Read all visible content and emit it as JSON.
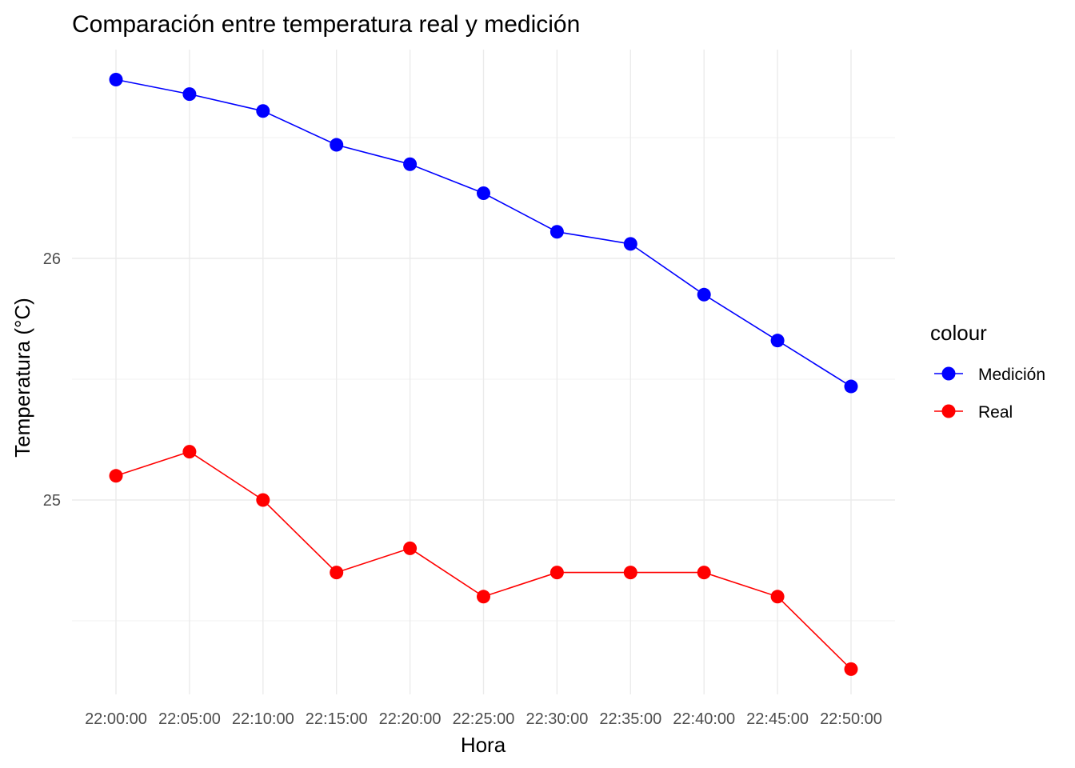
{
  "chart_data": {
    "type": "line",
    "title": "Comparación entre temperatura real y medición",
    "xlabel": "Hora",
    "ylabel": "Temperatura (°C)",
    "categories": [
      "22:00:00",
      "22:05:00",
      "22:10:00",
      "22:15:00",
      "22:20:00",
      "22:25:00",
      "22:30:00",
      "22:35:00",
      "22:40:00",
      "22:45:00",
      "22:50:00"
    ],
    "ylim": [
      24.18,
      26.9
    ],
    "yticks": [
      25,
      26
    ],
    "y_tick_labels": [
      "25",
      "26"
    ],
    "y_minor_ticks": [
      24.5,
      25.5,
      26.5
    ],
    "grid": true,
    "legend": {
      "title": "colour",
      "position": "right"
    },
    "series": [
      {
        "name": "Medición",
        "color": "#0000FF",
        "values": [
          26.74,
          26.68,
          26.61,
          26.47,
          26.39,
          26.27,
          26.11,
          26.06,
          25.85,
          25.66,
          25.47
        ]
      },
      {
        "name": "Real",
        "color": "#FF0000",
        "values": [
          25.1,
          25.2,
          25.0,
          24.7,
          24.8,
          24.6,
          24.7,
          24.7,
          24.7,
          24.6,
          24.3
        ]
      }
    ]
  }
}
